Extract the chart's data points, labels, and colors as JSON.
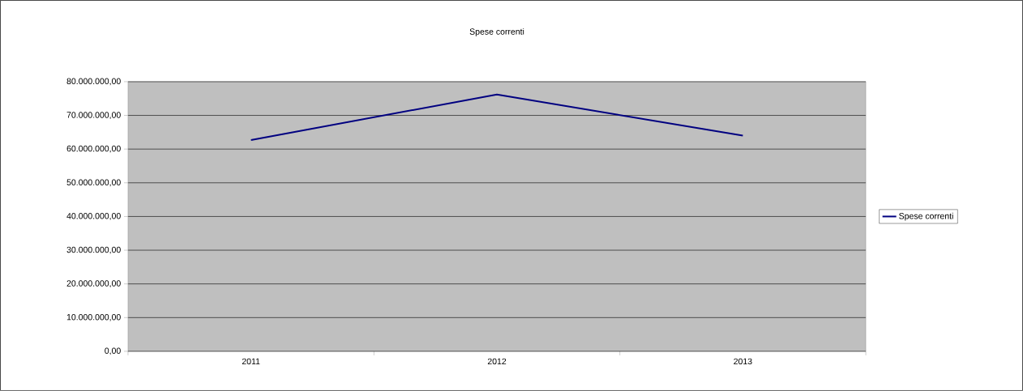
{
  "chart_data": {
    "type": "line",
    "title": "Spese correnti",
    "categories": [
      "2011",
      "2012",
      "2013"
    ],
    "series": [
      {
        "name": "Spese correnti",
        "color": "#000080",
        "values": [
          62700000,
          76200000,
          64000000
        ]
      }
    ],
    "ylim": [
      0,
      80000000
    ],
    "yticks": [
      {
        "value": 0,
        "label": "0,00"
      },
      {
        "value": 10000000,
        "label": "10.000.000,00"
      },
      {
        "value": 20000000,
        "label": "20.000.000,00"
      },
      {
        "value": 30000000,
        "label": "30.000.000,00"
      },
      {
        "value": 40000000,
        "label": "40.000.000,00"
      },
      {
        "value": 50000000,
        "label": "50.000.000,00"
      },
      {
        "value": 60000000,
        "label": "60.000.000,00"
      },
      {
        "value": 70000000,
        "label": "70.000.000,00"
      },
      {
        "value": 80000000,
        "label": "80.000.000,00"
      }
    ],
    "grid": "y",
    "legend": "right",
    "marker": "none",
    "line_style": "solid"
  }
}
